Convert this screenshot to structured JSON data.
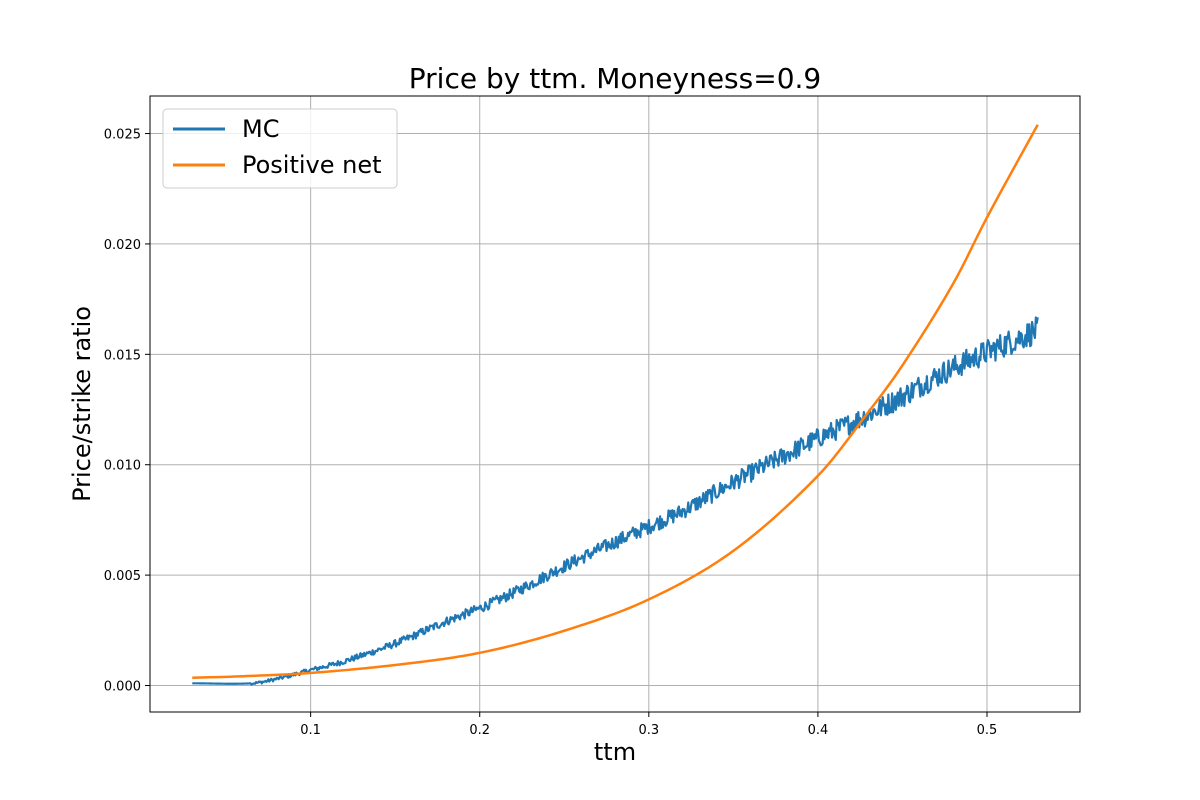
{
  "chart_data": {
    "type": "line",
    "title": "Price by ttm. Moneyness=0.9",
    "xlabel": "ttm",
    "ylabel": "Price/strike ratio",
    "xlim": [
      0.005,
      0.555
    ],
    "ylim": [
      -0.0012,
      0.0267
    ],
    "xticks": [
      0.1,
      0.2,
      0.3,
      0.4,
      0.5
    ],
    "xtick_labels": [
      "0.1",
      "0.2",
      "0.3",
      "0.4",
      "0.5"
    ],
    "yticks": [
      0.0,
      0.005,
      0.01,
      0.015,
      0.02,
      0.025
    ],
    "ytick_labels": [
      "0.000",
      "0.005",
      "0.010",
      "0.015",
      "0.020",
      "0.025"
    ],
    "grid": true,
    "legend_position": "upper-left",
    "series": [
      {
        "name": "MC",
        "color": "#1f77b4",
        "style": "noisy",
        "x": [
          0.03,
          0.065,
          0.08,
          0.1,
          0.12,
          0.15,
          0.18,
          0.2,
          0.22,
          0.25,
          0.28,
          0.3,
          0.32,
          0.35,
          0.38,
          0.4,
          0.42,
          0.45,
          0.47,
          0.5,
          0.53
        ],
        "y": [
          0.0001,
          0.0001,
          0.0003,
          0.0007,
          0.0011,
          0.0019,
          0.0029,
          0.0035,
          0.0042,
          0.0054,
          0.0065,
          0.0072,
          0.0079,
          0.0092,
          0.0104,
          0.0112,
          0.0119,
          0.0131,
          0.014,
          0.0151,
          0.0161
        ]
      },
      {
        "name": "Positive net",
        "color": "#ff7f0e",
        "style": "smooth",
        "x": [
          0.03,
          0.06,
          0.1,
          0.15,
          0.2,
          0.25,
          0.3,
          0.35,
          0.4,
          0.43,
          0.45,
          0.48,
          0.5,
          0.53
        ],
        "y": [
          0.00035,
          0.00042,
          0.00057,
          0.00093,
          0.00148,
          0.00248,
          0.0039,
          0.0061,
          0.0095,
          0.0124,
          0.0145,
          0.0182,
          0.0212,
          0.0254
        ]
      }
    ]
  }
}
